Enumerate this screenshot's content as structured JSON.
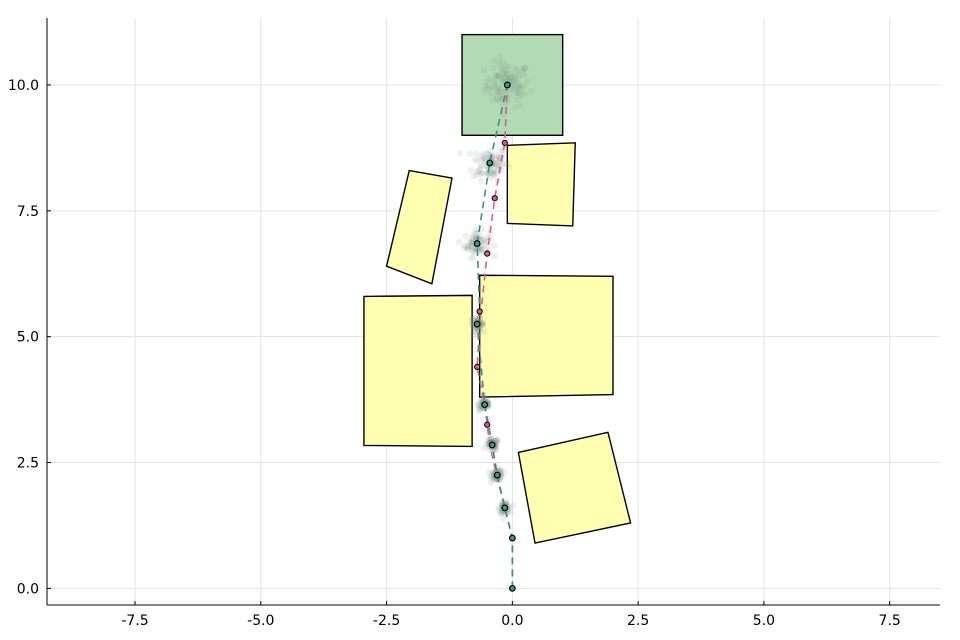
{
  "chart_data": {
    "type": "scatter",
    "title": "",
    "xlabel": "",
    "ylabel": "",
    "xlim": [
      -9.25,
      8.5
    ],
    "ylim": [
      -0.33,
      11.33
    ],
    "x_ticks": [
      -7.5,
      -5.0,
      -2.5,
      0.0,
      2.5,
      5.0,
      7.5
    ],
    "y_ticks": [
      0.0,
      2.5,
      5.0,
      7.5,
      10.0
    ],
    "x_tick_labels": [
      "-7.5",
      "-5.0",
      "-2.5",
      "0.0",
      "2.5",
      "5.0",
      "7.5"
    ],
    "y_tick_labels": [
      "0.0",
      "2.5",
      "5.0",
      "7.5",
      "10.0"
    ],
    "grid": true,
    "legend": "none",
    "colors": {
      "goal_fill": "#b1dbb3",
      "obstacle_fill": "#ffffb0",
      "outline": "#000000",
      "path_pink": "#e05a8a",
      "path_teal": "#3a8f86",
      "particle": "#7a8a85",
      "marker_center": "#2f9f93"
    },
    "goal_region": {
      "x": [
        -1.0,
        1.0
      ],
      "y": [
        9.0,
        11.0
      ]
    },
    "obstacles": [
      {
        "vertices": [
          [
            -2.05,
            8.3
          ],
          [
            -1.2,
            8.15
          ],
          [
            -1.6,
            6.05
          ],
          [
            -2.5,
            6.4
          ]
        ]
      },
      {
        "vertices": [
          [
            -0.1,
            8.8
          ],
          [
            1.25,
            8.85
          ],
          [
            1.2,
            7.2
          ],
          [
            -0.1,
            7.25
          ]
        ]
      },
      {
        "vertices": [
          [
            -2.95,
            5.8
          ],
          [
            -0.8,
            5.82
          ],
          [
            -0.8,
            2.82
          ],
          [
            -2.95,
            2.84
          ]
        ]
      },
      {
        "vertices": [
          [
            -0.65,
            6.22
          ],
          [
            2.0,
            6.2
          ],
          [
            2.0,
            3.85
          ],
          [
            -0.65,
            3.8
          ]
        ]
      },
      {
        "vertices": [
          [
            0.12,
            2.7
          ],
          [
            1.9,
            3.1
          ],
          [
            2.35,
            1.3
          ],
          [
            0.45,
            0.9
          ]
        ]
      }
    ],
    "series": [
      {
        "values": [
          [
            0.0,
            0.0
          ],
          [
            0.0,
            1.0
          ],
          [
            -0.15,
            1.6
          ],
          [
            -0.3,
            2.2
          ],
          [
            -0.45,
            2.85
          ],
          [
            -0.5,
            3.25
          ],
          [
            -0.55,
            3.65
          ],
          [
            -0.7,
            4.4
          ],
          [
            -0.65,
            5.25
          ],
          [
            -0.5,
            6.65
          ],
          [
            -0.35,
            7.75
          ],
          [
            -0.15,
            8.85
          ],
          [
            -0.1,
            10.0
          ]
        ]
      },
      {
        "values": [
          [
            0.0,
            0.0
          ],
          [
            0.0,
            1.0
          ],
          [
            -0.15,
            1.6
          ],
          [
            -0.3,
            2.25
          ],
          [
            -0.4,
            2.85
          ],
          [
            -0.55,
            3.65
          ],
          [
            -0.7,
            5.25
          ],
          [
            -0.65,
            5.5
          ],
          [
            -0.7,
            6.85
          ],
          [
            -0.45,
            8.45
          ],
          [
            -0.1,
            10.0
          ]
        ]
      }
    ],
    "particle_clusters": [
      {
        "center": [
          -0.1,
          10.0
        ],
        "spread": 0.5
      },
      {
        "center": [
          -0.45,
          8.45
        ],
        "spread": 0.38
      },
      {
        "center": [
          -0.7,
          6.85
        ],
        "spread": 0.28
      },
      {
        "center": [
          -0.7,
          5.25
        ],
        "spread": 0.14
      },
      {
        "center": [
          -0.55,
          3.65
        ],
        "spread": 0.14
      },
      {
        "center": [
          -0.4,
          2.85
        ],
        "spread": 0.14
      },
      {
        "center": [
          -0.3,
          2.25
        ],
        "spread": 0.13
      },
      {
        "center": [
          -0.15,
          1.6
        ],
        "spread": 0.12
      }
    ],
    "waypoints": [
      [
        0.0,
        0.0
      ],
      [
        0.0,
        1.0
      ],
      [
        -0.15,
        1.6
      ],
      [
        -0.3,
        2.25
      ],
      [
        -0.4,
        2.85
      ],
      [
        -0.55,
        3.65
      ],
      [
        -0.7,
        5.25
      ],
      [
        -0.7,
        6.85
      ],
      [
        -0.45,
        8.45
      ],
      [
        -0.1,
        10.0
      ]
    ],
    "extra_markers": [
      [
        -0.5,
        3.25
      ],
      [
        -0.7,
        4.4
      ],
      [
        -0.65,
        5.5
      ],
      [
        -0.5,
        6.65
      ],
      [
        -0.35,
        7.75
      ],
      [
        -0.15,
        8.85
      ]
    ]
  }
}
